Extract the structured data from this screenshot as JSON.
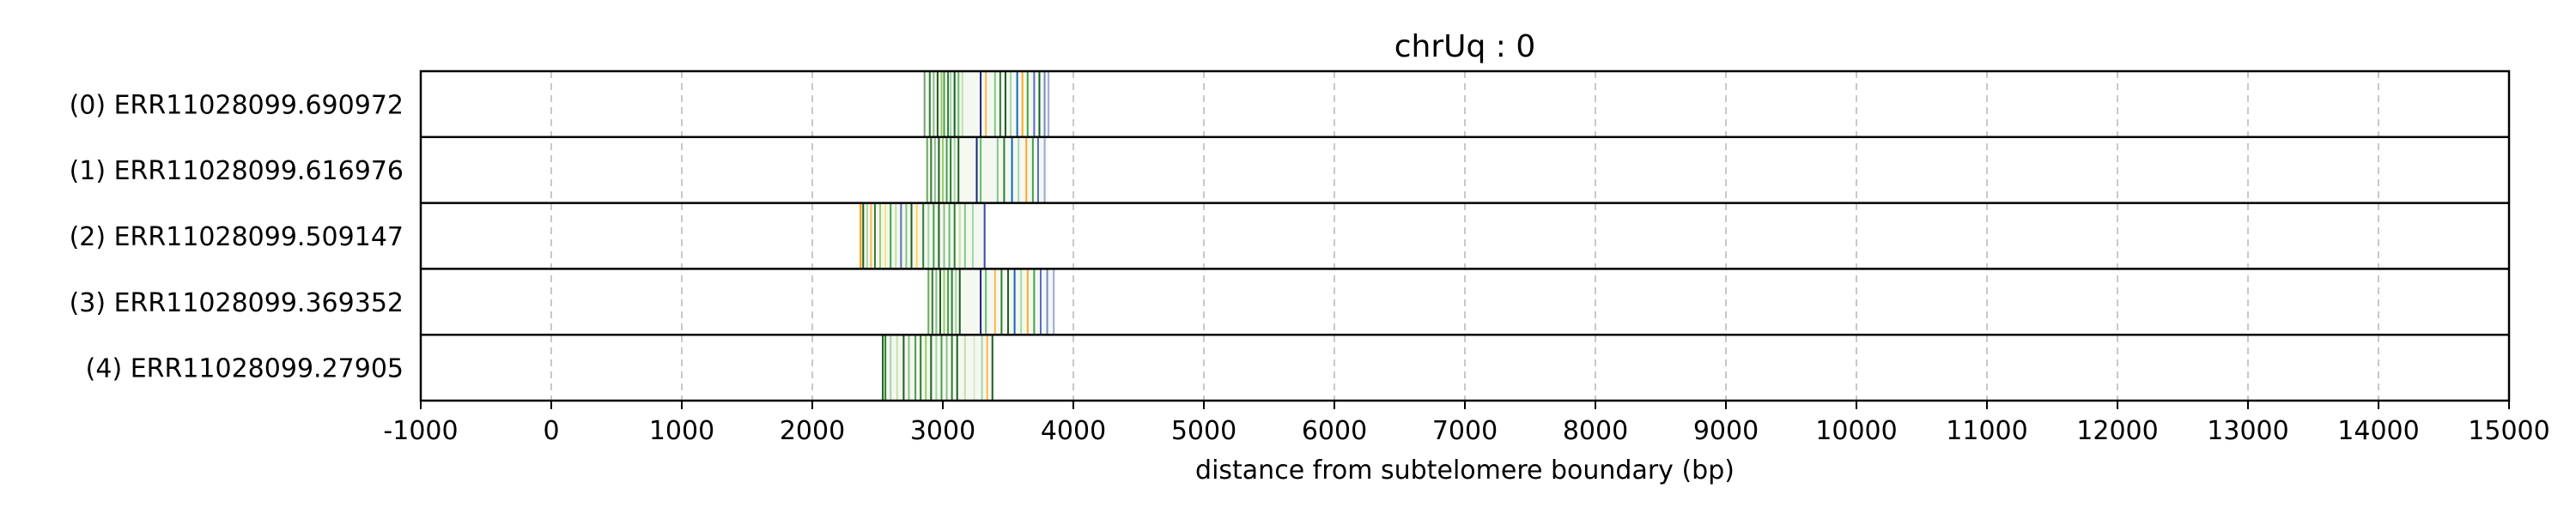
{
  "chart_data": {
    "type": "table",
    "title": "chrUq : 0",
    "xlabel": "distance from subtelomere boundary (bp)",
    "xlim": [
      -1000,
      15000
    ],
    "xticks": [
      -1000,
      0,
      1000,
      2000,
      3000,
      4000,
      5000,
      6000,
      7000,
      8000,
      9000,
      10000,
      11000,
      12000,
      13000,
      14000,
      15000
    ],
    "grid": "vertical dashed",
    "rows": [
      {
        "label": "(0) ERR11028099.690972",
        "start": 2850,
        "end": 3820,
        "marks": [
          {
            "x": 2860,
            "color": "#6aaa64"
          },
          {
            "x": 2900,
            "color": "#2e7d32"
          },
          {
            "x": 2930,
            "color": "#8fbc8f"
          },
          {
            "x": 2960,
            "color": "#1b5e20"
          },
          {
            "x": 2990,
            "color": "#9ccc65"
          },
          {
            "x": 3010,
            "color": "#43a047"
          },
          {
            "x": 3040,
            "color": "#2e7d32"
          },
          {
            "x": 3060,
            "color": "#a5d6a7"
          },
          {
            "x": 3090,
            "color": "#1b5e20"
          },
          {
            "x": 3120,
            "color": "#66bb6a"
          },
          {
            "x": 3150,
            "color": "#c5e1a5"
          },
          {
            "x": 3290,
            "color": "#1a237e"
          },
          {
            "x": 3330,
            "color": "#ffb74d"
          },
          {
            "x": 3400,
            "color": "#81c784"
          },
          {
            "x": 3440,
            "color": "#2e7d32"
          },
          {
            "x": 3480,
            "color": "#1b5e20"
          },
          {
            "x": 3520,
            "color": "#a5d6a7"
          },
          {
            "x": 3570,
            "color": "#1565c0"
          },
          {
            "x": 3610,
            "color": "#ffa726"
          },
          {
            "x": 3650,
            "color": "#43a047"
          },
          {
            "x": 3700,
            "color": "#5c6bc0"
          },
          {
            "x": 3740,
            "color": "#1b5e20"
          },
          {
            "x": 3780,
            "color": "#7986cb"
          },
          {
            "x": 3810,
            "color": "#9fa8da"
          }
        ]
      },
      {
        "label": "(1) ERR11028099.616976",
        "start": 2870,
        "end": 3800,
        "marks": [
          {
            "x": 2880,
            "color": "#6aaa64"
          },
          {
            "x": 2910,
            "color": "#2e7d32"
          },
          {
            "x": 2940,
            "color": "#8fbc8f"
          },
          {
            "x": 2970,
            "color": "#1b5e20"
          },
          {
            "x": 3000,
            "color": "#9ccc65"
          },
          {
            "x": 3030,
            "color": "#43a047"
          },
          {
            "x": 3060,
            "color": "#2e7d32"
          },
          {
            "x": 3090,
            "color": "#a5d6a7"
          },
          {
            "x": 3120,
            "color": "#1b5e20"
          },
          {
            "x": 3260,
            "color": "#1a237e"
          },
          {
            "x": 3290,
            "color": "#66bb6a"
          },
          {
            "x": 3420,
            "color": "#81c784"
          },
          {
            "x": 3470,
            "color": "#2e7d32"
          },
          {
            "x": 3530,
            "color": "#1565c0"
          },
          {
            "x": 3580,
            "color": "#a5d6a7"
          },
          {
            "x": 3640,
            "color": "#ffa726"
          },
          {
            "x": 3690,
            "color": "#43a047"
          },
          {
            "x": 3730,
            "color": "#5c6bc0"
          },
          {
            "x": 3780,
            "color": "#9fa8da"
          }
        ]
      },
      {
        "label": "(2) ERR11028099.509147",
        "start": 2360,
        "end": 3330,
        "marks": [
          {
            "x": 2370,
            "color": "#ff9800"
          },
          {
            "x": 2390,
            "color": "#1b5e20"
          },
          {
            "x": 2420,
            "color": "#a5d6a7"
          },
          {
            "x": 2450,
            "color": "#ffb74d"
          },
          {
            "x": 2480,
            "color": "#2e7d32"
          },
          {
            "x": 2520,
            "color": "#9ccc65"
          },
          {
            "x": 2560,
            "color": "#ffe082"
          },
          {
            "x": 2600,
            "color": "#43a047"
          },
          {
            "x": 2640,
            "color": "#c5e1a5"
          },
          {
            "x": 2680,
            "color": "#5c6bc0"
          },
          {
            "x": 2720,
            "color": "#81c784"
          },
          {
            "x": 2760,
            "color": "#1b5e20"
          },
          {
            "x": 2800,
            "color": "#ffd54f"
          },
          {
            "x": 2850,
            "color": "#2e7d32"
          },
          {
            "x": 2890,
            "color": "#a5d6a7"
          },
          {
            "x": 2930,
            "color": "#43a047"
          },
          {
            "x": 2970,
            "color": "#1b5e20"
          },
          {
            "x": 3010,
            "color": "#8fbc8f"
          },
          {
            "x": 3050,
            "color": "#66bb6a"
          },
          {
            "x": 3090,
            "color": "#2e7d32"
          },
          {
            "x": 3130,
            "color": "#c5e1a5"
          },
          {
            "x": 3170,
            "color": "#81c784"
          },
          {
            "x": 3230,
            "color": "#a5d6a7"
          },
          {
            "x": 3320,
            "color": "#3949ab"
          }
        ]
      },
      {
        "label": "(3) ERR11028099.369352",
        "start": 2880,
        "end": 3860,
        "marks": [
          {
            "x": 2890,
            "color": "#6aaa64"
          },
          {
            "x": 2920,
            "color": "#2e7d32"
          },
          {
            "x": 2950,
            "color": "#8fbc8f"
          },
          {
            "x": 2980,
            "color": "#1b5e20"
          },
          {
            "x": 3010,
            "color": "#9ccc65"
          },
          {
            "x": 3040,
            "color": "#43a047"
          },
          {
            "x": 3070,
            "color": "#2e7d32"
          },
          {
            "x": 3100,
            "color": "#a5d6a7"
          },
          {
            "x": 3130,
            "color": "#1b5e20"
          },
          {
            "x": 3290,
            "color": "#1a237e"
          },
          {
            "x": 3330,
            "color": "#66bb6a"
          },
          {
            "x": 3400,
            "color": "#ffb74d"
          },
          {
            "x": 3450,
            "color": "#2e7d32"
          },
          {
            "x": 3500,
            "color": "#1b5e20"
          },
          {
            "x": 3550,
            "color": "#1565c0"
          },
          {
            "x": 3600,
            "color": "#a5d6a7"
          },
          {
            "x": 3650,
            "color": "#ffa726"
          },
          {
            "x": 3700,
            "color": "#43a047"
          },
          {
            "x": 3750,
            "color": "#5c6bc0"
          },
          {
            "x": 3800,
            "color": "#7986cb"
          },
          {
            "x": 3850,
            "color": "#9fa8da"
          }
        ]
      },
      {
        "label": "(4) ERR11028099.27905",
        "start": 2530,
        "end": 3390,
        "marks": [
          {
            "x": 2540,
            "color": "#1b5e20"
          },
          {
            "x": 2560,
            "color": "#2e7d32"
          },
          {
            "x": 2600,
            "color": "#a5d6a7"
          },
          {
            "x": 2650,
            "color": "#c5e1a5"
          },
          {
            "x": 2700,
            "color": "#1b5e20"
          },
          {
            "x": 2740,
            "color": "#81c784"
          },
          {
            "x": 2790,
            "color": "#43a047"
          },
          {
            "x": 2830,
            "color": "#2e7d32"
          },
          {
            "x": 2870,
            "color": "#9ccc65"
          },
          {
            "x": 2910,
            "color": "#1b5e20"
          },
          {
            "x": 2950,
            "color": "#a5d6a7"
          },
          {
            "x": 2990,
            "color": "#43a047"
          },
          {
            "x": 3030,
            "color": "#8fbc8f"
          },
          {
            "x": 3070,
            "color": "#2e7d32"
          },
          {
            "x": 3110,
            "color": "#1b5e20"
          },
          {
            "x": 3170,
            "color": "#c5e1a5"
          },
          {
            "x": 3240,
            "color": "#dcedc8"
          },
          {
            "x": 3300,
            "color": "#a5d6a7"
          },
          {
            "x": 3340,
            "color": "#ffb74d"
          },
          {
            "x": 3380,
            "color": "#1b5e20"
          }
        ]
      }
    ]
  }
}
